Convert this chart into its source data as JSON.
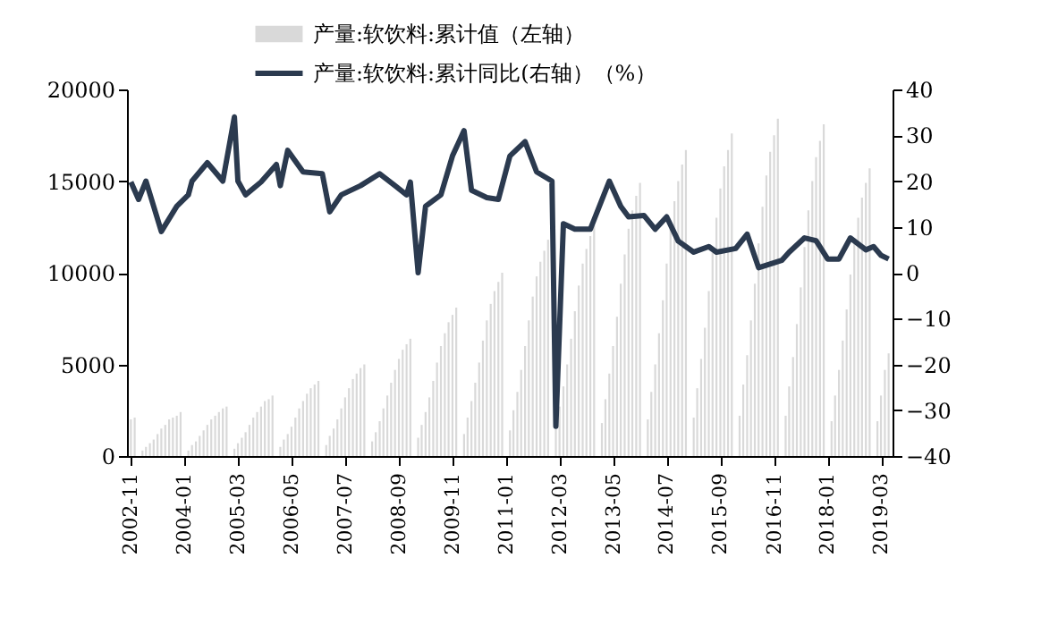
{
  "chart_data": {
    "type": "bar",
    "legend": "top",
    "grid": false,
    "xlim": [
      "2002-10",
      "2019-06"
    ],
    "xticks": [
      "2002-11",
      "2004-01",
      "2005-03",
      "2006-05",
      "2007-07",
      "2008-09",
      "2009-11",
      "2011-01",
      "2012-03",
      "2013-05",
      "2014-07",
      "2015-09",
      "2016-11",
      "2018-01",
      "2019-03"
    ],
    "ylim": [
      0,
      20000
    ],
    "yticks": [
      0,
      5000,
      10000,
      15000,
      20000
    ],
    "y2lim": [
      -40,
      40
    ],
    "y2ticks": [
      -40,
      -30,
      -20,
      -10,
      0,
      10,
      20,
      30,
      40
    ],
    "series": [
      {
        "name": "产量:软饮料:累计值（左轴）",
        "color": "#d9d9d9",
        "x": [
          "2002-11",
          "2002-12",
          "2003-01",
          "2003-02",
          "2003-03",
          "2003-04",
          "2003-05",
          "2003-06",
          "2003-07",
          "2003-08",
          "2003-09",
          "2003-10",
          "2003-11",
          "2003-12",
          "2004-01",
          "2004-02",
          "2004-03",
          "2004-04",
          "2004-05",
          "2004-06",
          "2004-07",
          "2004-08",
          "2004-09",
          "2004-10",
          "2004-11",
          "2004-12",
          "2005-01",
          "2005-02",
          "2005-03",
          "2005-04",
          "2005-05",
          "2005-06",
          "2005-07",
          "2005-08",
          "2005-09",
          "2005-10",
          "2005-11",
          "2005-12",
          "2006-01",
          "2006-02",
          "2006-03",
          "2006-04",
          "2006-05",
          "2006-06",
          "2006-07",
          "2006-08",
          "2006-09",
          "2006-10",
          "2006-11",
          "2006-12",
          "2007-01",
          "2007-02",
          "2007-03",
          "2007-04",
          "2007-05",
          "2007-06",
          "2007-07",
          "2007-08",
          "2007-09",
          "2007-10",
          "2007-11",
          "2007-12",
          "2008-01",
          "2008-02",
          "2008-03",
          "2008-04",
          "2008-05",
          "2008-06",
          "2008-07",
          "2008-08",
          "2008-09",
          "2008-10",
          "2008-11",
          "2008-12",
          "2009-01",
          "2009-02",
          "2009-03",
          "2009-04",
          "2009-05",
          "2009-06",
          "2009-07",
          "2009-08",
          "2009-09",
          "2009-10",
          "2009-11",
          "2009-12",
          "2010-01",
          "2010-02",
          "2010-03",
          "2010-04",
          "2010-05",
          "2010-06",
          "2010-07",
          "2010-08",
          "2010-09",
          "2010-10",
          "2010-11",
          "2010-12",
          "2011-01",
          "2011-02",
          "2011-03",
          "2011-04",
          "2011-05",
          "2011-06",
          "2011-07",
          "2011-08",
          "2011-09",
          "2011-10",
          "2011-11",
          "2011-12",
          "2012-01",
          "2012-02",
          "2012-03",
          "2012-04",
          "2012-05",
          "2012-06",
          "2012-07",
          "2012-08",
          "2012-09",
          "2012-10",
          "2012-11",
          "2012-12",
          "2013-01",
          "2013-02",
          "2013-03",
          "2013-04",
          "2013-05",
          "2013-06",
          "2013-07",
          "2013-08",
          "2013-09",
          "2013-10",
          "2013-11",
          "2013-12",
          "2014-01",
          "2014-02",
          "2014-03",
          "2014-04",
          "2014-05",
          "2014-06",
          "2014-07",
          "2014-08",
          "2014-09",
          "2014-10",
          "2014-11",
          "2014-12",
          "2015-01",
          "2015-02",
          "2015-03",
          "2015-04",
          "2015-05",
          "2015-06",
          "2015-07",
          "2015-08",
          "2015-09",
          "2015-10",
          "2015-11",
          "2015-12",
          "2016-01",
          "2016-02",
          "2016-03",
          "2016-04",
          "2016-05",
          "2016-06",
          "2016-07",
          "2016-08",
          "2016-09",
          "2016-10",
          "2016-11",
          "2016-12",
          "2017-01",
          "2017-02",
          "2017-03",
          "2017-04",
          "2017-05",
          "2017-06",
          "2017-07",
          "2017-08",
          "2017-09",
          "2017-10",
          "2017-11",
          "2017-12",
          "2018-01",
          "2018-02",
          "2018-03",
          "2018-04",
          "2018-05",
          "2018-06",
          "2018-07",
          "2018-08",
          "2018-09",
          "2018-10",
          "2018-11",
          "2018-12",
          "2019-01",
          "2019-02",
          "2019-03",
          "2019-04",
          "2019-05"
        ],
        "values": [
          2000,
          2100,
          null,
          300,
          500,
          700,
          900,
          1200,
          1500,
          1700,
          2000,
          2100,
          2200,
          2400,
          null,
          300,
          600,
          800,
          1100,
          1400,
          1700,
          2000,
          2200,
          2400,
          2600,
          2700,
          null,
          400,
          700,
          1000,
          1300,
          1700,
          2100,
          2400,
          2700,
          3000,
          3100,
          3300,
          null,
          500,
          900,
          1200,
          1600,
          2100,
          2600,
          3000,
          3400,
          3700,
          3900,
          4100,
          null,
          600,
          1100,
          1500,
          2000,
          2600,
          3200,
          3700,
          4200,
          4500,
          4800,
          5000,
          null,
          800,
          1300,
          1900,
          2600,
          3300,
          4000,
          4700,
          5300,
          5800,
          6100,
          6400,
          null,
          1000,
          1700,
          2400,
          3200,
          4100,
          5100,
          6000,
          6700,
          7300,
          7700,
          8100,
          null,
          1200,
          2100,
          3000,
          4000,
          5100,
          6300,
          7400,
          8300,
          9000,
          9500,
          10000,
          null,
          1400,
          2500,
          3500,
          4700,
          6000,
          7400,
          8700,
          9800,
          10600,
          11200,
          11800,
          null,
          1500,
          2700,
          3800,
          5000,
          6400,
          7900,
          9300,
          10500,
          11300,
          12000,
          12600,
          null,
          1800,
          3100,
          4500,
          6000,
          7600,
          9400,
          11000,
          12400,
          13400,
          14200,
          14900,
          null,
          2000,
          3500,
          5000,
          6700,
          8500,
          10500,
          12400,
          13900,
          15000,
          15900,
          16700,
          null,
          2100,
          3700,
          5300,
          7000,
          9000,
          11100,
          13000,
          14600,
          15800,
          16700,
          17600,
          null,
          2200,
          3900,
          5500,
          7400,
          9400,
          11600,
          13600,
          15300,
          16600,
          17500,
          18400,
          null,
          2200,
          3800,
          5400,
          7200,
          9200,
          11400,
          13400,
          15000,
          16300,
          17200,
          18100,
          null,
          1900,
          3300,
          4700,
          6300,
          8000,
          9900,
          11600,
          13000,
          14100,
          14900,
          15700,
          null,
          1900,
          3300,
          4700,
          5600
        ]
      },
      {
        "name": "产量:软饮料:累计同比(右轴）（%）",
        "type": "line",
        "axis": "y2",
        "color": "#2b3a4f",
        "line_style": "solid",
        "marker": "none",
        "x": [
          "2002-11",
          "2003-01",
          "2003-03",
          "2003-07",
          "2003-11",
          "2004-02",
          "2004-03",
          "2004-07",
          "2004-11",
          "2005-02",
          "2005-03",
          "2005-05",
          "2005-09",
          "2006-01",
          "2006-02",
          "2006-04",
          "2006-08",
          "2007-01",
          "2007-03",
          "2007-06",
          "2007-11",
          "2008-04",
          "2008-08",
          "2008-11",
          "2008-12",
          "2009-02",
          "2009-04",
          "2009-08",
          "2009-11",
          "2010-02",
          "2010-04",
          "2010-08",
          "2010-11",
          "2011-02",
          "2011-06",
          "2011-09",
          "2012-01",
          "2012-02",
          "2012-04",
          "2012-07",
          "2012-11",
          "2013-04",
          "2013-07",
          "2013-09",
          "2014-01",
          "2014-04",
          "2014-07",
          "2014-10",
          "2015-02",
          "2015-06",
          "2015-08",
          "2016-01",
          "2016-04",
          "2016-07",
          "2017-01",
          "2017-03",
          "2017-07",
          "2017-10",
          "2018-01",
          "2018-04",
          "2018-07",
          "2018-11",
          "2019-01",
          "2019-03",
          "2019-05"
        ],
        "values": [
          19.8,
          16,
          20,
          9,
          14.5,
          17,
          20,
          24,
          20,
          34,
          20,
          17,
          19.8,
          23.6,
          19,
          26.7,
          22,
          21.6,
          13.3,
          17,
          19,
          21.6,
          19,
          17,
          19.8,
          0,
          14.5,
          17,
          25.5,
          31,
          18,
          16.4,
          16,
          25.5,
          28.6,
          22,
          20,
          -33.5,
          10.7,
          9.5,
          9.5,
          20,
          14.5,
          12.2,
          12.5,
          9.5,
          12.2,
          6.9,
          4.5,
          5.7,
          4.5,
          5.3,
          8.4,
          1.1,
          2.7,
          4.5,
          7.6,
          7,
          3,
          3,
          7.6,
          5,
          5.7,
          3.8,
          3
        ]
      }
    ]
  }
}
